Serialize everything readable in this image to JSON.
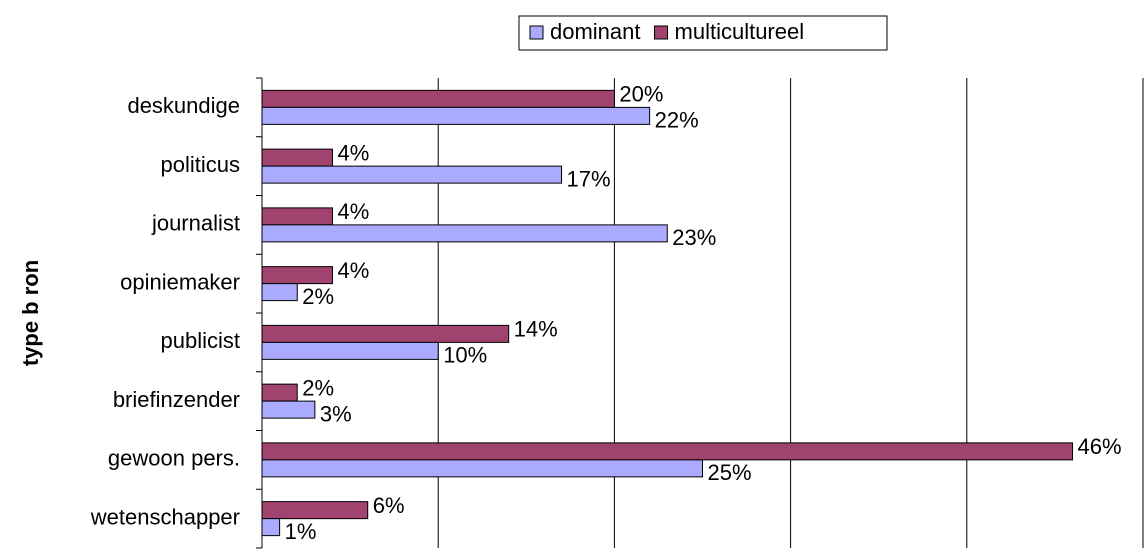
{
  "chart_data": {
    "type": "bar",
    "orientation": "horizontal",
    "categories": [
      "deskundige",
      "politicus",
      "journalist",
      "opiniemaker",
      "publicist",
      "briefinzender",
      "gewoon pers.",
      "wetenschapper"
    ],
    "series": [
      {
        "name": "dominant",
        "color": "#aaaaff",
        "values": [
          22,
          17,
          23,
          2,
          10,
          3,
          25,
          1
        ],
        "value_labels": [
          "22%",
          "17%",
          "23%",
          "2%",
          "10%",
          "3%",
          "25%",
          "1%"
        ]
      },
      {
        "name": "multicultureel",
        "color": "#a0436e",
        "values": [
          20,
          4,
          4,
          4,
          14,
          2,
          46,
          6
        ],
        "value_labels": [
          "20%",
          "4%",
          "4%",
          "4%",
          "14%",
          "2%",
          "46%",
          "6%"
        ]
      }
    ],
    "y_label": "type b ron",
    "xlim": [
      0,
      50
    ],
    "xticks": [
      0,
      10,
      20,
      30,
      40,
      50
    ],
    "grid": true,
    "legend": "top"
  }
}
